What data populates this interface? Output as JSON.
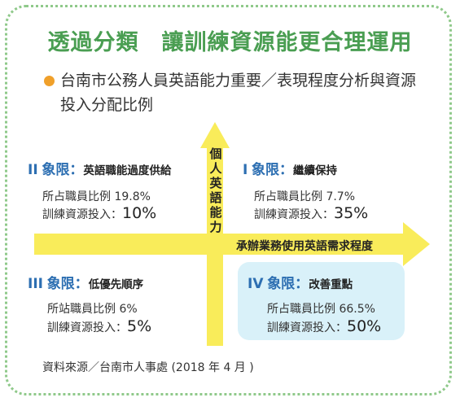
{
  "title": "透過分類　讓訓練資源能更合理運用",
  "subtitle": "台南市公務人員英語能力重要／表現程度分析與資源投入分配比例",
  "axes": {
    "vertical": [
      "個",
      "人",
      "英",
      "語",
      "能",
      "力"
    ],
    "horizontal": "承辦業務使用英語需求程度"
  },
  "quadrants": {
    "q2": {
      "roman": "II",
      "qword": "象限：",
      "name": "英語職能過度供給",
      "ratio_label": "所占職員比例 19.8%",
      "invest_label": "訓練資源投入：",
      "invest_value": "10%"
    },
    "q1": {
      "roman": "I",
      "qword": "象限：",
      "name": "繼續保持",
      "ratio_label": "所占職員比例 7.7%",
      "invest_label": "訓練資源投入：",
      "invest_value": "35%"
    },
    "q3": {
      "roman": "III",
      "qword": "象限：",
      "name": "低優先順序",
      "ratio_label": "所站職員比例 6%",
      "invest_label": "訓練資源投入：",
      "invest_value": "5%"
    },
    "q4": {
      "roman": "IV",
      "qword": "象限：",
      "name": "改善重點",
      "ratio_label": "所占職員比例 66.5%",
      "invest_label": "訓練資源投入：",
      "invest_value": "50%"
    }
  },
  "source": "資料來源／台南市人事處 (2018 年 4 月 )",
  "colors": {
    "title": "#4a9e52",
    "border": "#8fc98a",
    "quadrant_label": "#2d6fb2",
    "arrow": "#f9ec5a",
    "highlight_box": "#d9f1f9",
    "bullet": "#f0a02a"
  }
}
